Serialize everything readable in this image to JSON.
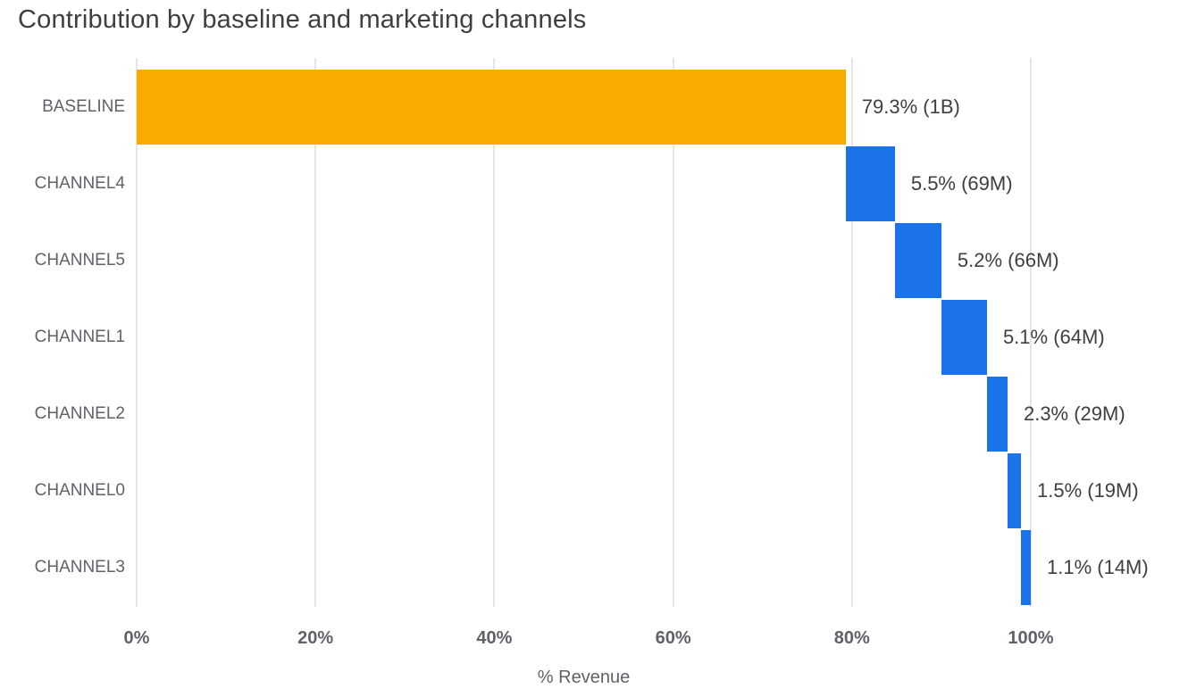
{
  "title": "Contribution by baseline and marketing channels",
  "chart_data": {
    "type": "bar",
    "subtype": "horizontal-waterfall",
    "title": "Contribution by baseline and marketing channels",
    "xlabel": "% Revenue",
    "ylabel": "",
    "categories": [
      "BASELINE",
      "CHANNEL4",
      "CHANNEL5",
      "CHANNEL1",
      "CHANNEL2",
      "CHANNEL0",
      "CHANNEL3"
    ],
    "values": [
      79.3,
      5.5,
      5.2,
      5.1,
      2.3,
      1.5,
      1.1
    ],
    "starts": [
      0,
      79.3,
      84.8,
      90.0,
      95.1,
      97.4,
      98.9
    ],
    "bar_labels": [
      "79.3% (1B)",
      "5.5% (69M)",
      "5.2% (66M)",
      "5.1% (64M)",
      "2.3% (29M)",
      "1.5% (19M)",
      "1.1% (14M)"
    ],
    "colors": [
      "#F9AB00",
      "#1A73E8",
      "#1A73E8",
      "#1A73E8",
      "#1A73E8",
      "#1A73E8",
      "#1A73E8"
    ],
    "grid": true,
    "grid_color": "#e4e7ea",
    "legend": false,
    "xlim": [
      0,
      100
    ],
    "x_tick_values": [
      0,
      20,
      40,
      60,
      80,
      100
    ],
    "x_ticks": [
      "0%",
      "20%",
      "40%",
      "60%",
      "80%",
      "100%"
    ]
  }
}
